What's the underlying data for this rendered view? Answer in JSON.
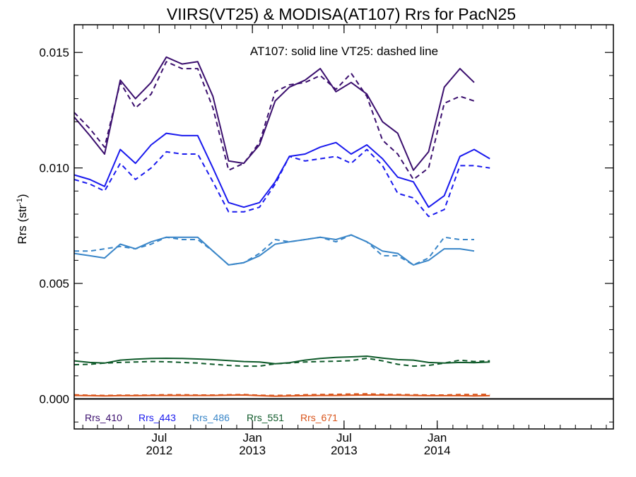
{
  "chart_data": {
    "type": "line",
    "title": "VIIRS(VT25) & MODISA(AT107)  Rrs for PacN25",
    "annotation": "AT107: solid line   VT25: dashed line",
    "ylabel_main": "Rrs (str",
    "ylabel_sup": "-1",
    "ylabel_close": ")",
    "ylim": [
      -0.0013,
      0.0162
    ],
    "yticks": [
      0.0,
      0.005,
      0.01,
      0.015
    ],
    "ytick_labels": [
      "0.000",
      "0.005",
      "0.010",
      "0.015"
    ],
    "xlim": [
      "2012-01-15",
      "2014-12-15"
    ],
    "xticks": [
      {
        "date": "2012-07-01",
        "line1": "Jul",
        "line2": "2012"
      },
      {
        "date": "2013-01-01",
        "line1": "Jan",
        "line2": "2013"
      },
      {
        "date": "2013-07-01",
        "line1": "Jul",
        "line2": "2013"
      },
      {
        "date": "2014-01-01",
        "line1": "Jan",
        "line2": "2014"
      }
    ],
    "x": [
      "2012-01-15",
      "2012-02-15",
      "2012-03-15",
      "2012-04-15",
      "2012-05-15",
      "2012-06-15",
      "2012-07-15",
      "2012-08-15",
      "2012-09-15",
      "2012-10-15",
      "2012-11-15",
      "2012-12-15",
      "2013-01-15",
      "2013-02-15",
      "2013-03-15",
      "2013-04-15",
      "2013-05-15",
      "2013-06-15",
      "2013-07-15",
      "2013-08-15",
      "2013-09-15",
      "2013-10-15",
      "2013-11-15",
      "2013-12-15",
      "2014-01-15",
      "2014-02-15",
      "2014-03-15",
      "2014-04-15",
      "2014-05-15",
      "2014-06-15",
      "2014-07-15",
      "2014-08-15",
      "2014-09-15",
      "2014-10-15",
      "2014-11-15",
      "2014-12-15"
    ],
    "series": [
      {
        "name": "Rrs_410",
        "color": "#3b0f6e",
        "solid": [
          0.0122,
          0.0114,
          0.0106,
          0.0138,
          0.013,
          0.0137,
          0.0148,
          0.0145,
          0.0146,
          0.0131,
          0.0103,
          0.0102,
          0.011,
          0.0129,
          0.0135,
          0.0138,
          0.0143,
          0.0133,
          0.0137,
          0.0132,
          0.012,
          0.0115,
          0.0099,
          0.0107,
          0.0135,
          0.0143,
          0.0137,
          null,
          null,
          null,
          null,
          null,
          null,
          null,
          null,
          null
        ],
        "dashed": [
          0.0124,
          0.0117,
          0.0109,
          0.0137,
          0.0126,
          0.0132,
          0.0146,
          0.0143,
          0.0143,
          0.0126,
          0.0099,
          0.0102,
          0.0111,
          0.0133,
          0.0136,
          0.0137,
          0.014,
          0.0134,
          0.0141,
          0.0131,
          0.0112,
          0.0106,
          0.0095,
          0.01,
          0.0128,
          0.0131,
          0.0129,
          null,
          null,
          null,
          null,
          null,
          null,
          null,
          null,
          null
        ]
      },
      {
        "name": "Rrs_443",
        "color": "#1a1aee",
        "solid": [
          0.0097,
          0.0095,
          0.0092,
          0.0108,
          0.0102,
          0.011,
          0.0115,
          0.0114,
          0.0114,
          0.01,
          0.0085,
          0.0083,
          0.0085,
          0.0094,
          0.0105,
          0.0106,
          0.0109,
          0.0111,
          0.0106,
          0.011,
          0.0104,
          0.0096,
          0.0094,
          0.0083,
          0.0088,
          0.0105,
          0.0108,
          0.0104,
          null,
          null,
          null,
          null,
          null,
          null,
          null,
          null
        ],
        "dashed": [
          0.0095,
          0.0093,
          0.009,
          0.0102,
          0.0095,
          0.01,
          0.0107,
          0.0106,
          0.0106,
          0.0094,
          0.0081,
          0.0081,
          0.0083,
          0.0093,
          0.0105,
          0.0103,
          0.0104,
          0.0105,
          0.0102,
          0.0108,
          0.0101,
          0.0089,
          0.0087,
          0.0079,
          0.0082,
          0.0101,
          0.0101,
          0.01,
          null,
          null,
          null,
          null,
          null,
          null,
          null,
          null
        ]
      },
      {
        "name": "Rrs_486",
        "color": "#3a86c8",
        "solid": [
          0.0063,
          0.0062,
          0.0061,
          0.0067,
          0.0065,
          0.0068,
          0.007,
          0.007,
          0.007,
          0.0064,
          0.0058,
          0.0059,
          0.0062,
          0.0067,
          0.0068,
          0.0069,
          0.007,
          0.0069,
          0.0071,
          0.0068,
          0.0064,
          0.0063,
          0.0058,
          0.006,
          0.0065,
          0.0065,
          0.0064,
          null,
          null,
          null,
          null,
          null,
          null,
          null,
          null,
          null
        ],
        "dashed": [
          0.0064,
          0.0064,
          0.0065,
          0.0066,
          0.0065,
          0.0067,
          0.007,
          0.0069,
          0.0069,
          0.0064,
          0.0058,
          0.0059,
          0.0063,
          0.0069,
          0.0068,
          0.0069,
          0.007,
          0.0068,
          0.0071,
          0.0068,
          0.0062,
          0.0062,
          0.0058,
          0.0061,
          0.007,
          0.0069,
          0.0069,
          null,
          null,
          null,
          null,
          null,
          null,
          null,
          null,
          null
        ]
      },
      {
        "name": "Rrs_551",
        "color": "#0f5a2a",
        "solid": [
          0.00165,
          0.00158,
          0.00155,
          0.00168,
          0.00172,
          0.00175,
          0.00176,
          0.00175,
          0.00173,
          0.0017,
          0.00166,
          0.00162,
          0.0016,
          0.00152,
          0.00157,
          0.00168,
          0.00175,
          0.0018,
          0.00182,
          0.00185,
          0.00177,
          0.0017,
          0.00168,
          0.00158,
          0.00155,
          0.00158,
          0.00157,
          0.0016,
          null,
          null,
          null,
          null,
          null,
          null,
          null,
          null
        ],
        "dashed": [
          0.00148,
          0.0015,
          0.00155,
          0.00158,
          0.0016,
          0.00162,
          0.00161,
          0.00158,
          0.00155,
          0.0015,
          0.00145,
          0.00142,
          0.00142,
          0.00152,
          0.00155,
          0.0016,
          0.00162,
          0.00163,
          0.00166,
          0.00176,
          0.00165,
          0.0015,
          0.00142,
          0.00145,
          0.00155,
          0.00168,
          0.00162,
          0.00165,
          null,
          null,
          null,
          null,
          null,
          null,
          null,
          null
        ]
      },
      {
        "name": "Rrs_671",
        "color": "#d9541a",
        "solid": [
          0.00015,
          0.00014,
          0.00013,
          0.00014,
          0.00014,
          0.00015,
          0.00015,
          0.00015,
          0.00015,
          0.00015,
          0.00016,
          0.00017,
          0.00014,
          0.00012,
          0.00013,
          0.00014,
          0.00015,
          0.00015,
          0.00016,
          0.00017,
          0.00016,
          0.00016,
          0.00015,
          0.00014,
          0.00014,
          0.00014,
          0.00013,
          0.00014,
          null,
          null,
          null,
          null,
          null,
          null,
          null,
          null
        ],
        "dashed": [
          0.00018,
          0.00016,
          0.00015,
          0.00016,
          0.00016,
          0.00017,
          0.00018,
          0.00018,
          0.00017,
          0.00017,
          0.00018,
          0.00019,
          0.00016,
          0.00015,
          0.00016,
          0.00018,
          0.00019,
          0.0002,
          0.00021,
          0.00022,
          0.0002,
          0.00019,
          0.00018,
          0.00017,
          0.00017,
          0.00019,
          0.00019,
          0.0002,
          null,
          null,
          null,
          null,
          null,
          null,
          null,
          null
        ]
      }
    ],
    "zero_line": true,
    "grid": false,
    "legend_position": "bottom-left"
  }
}
